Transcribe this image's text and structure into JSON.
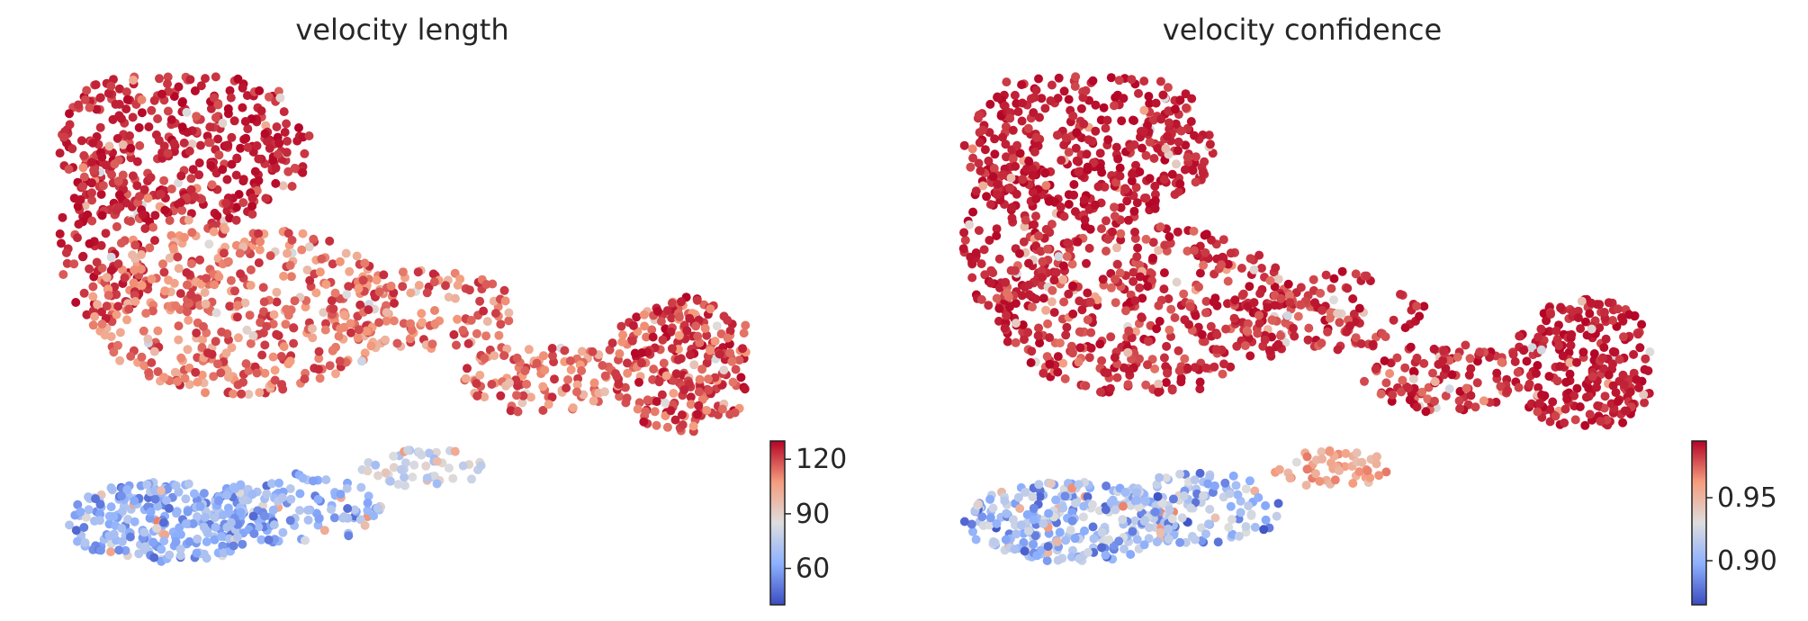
{
  "chart_data": [
    {
      "type": "scatter",
      "title": "velocity length",
      "colormap": "coolwarm",
      "colorbar": {
        "min": 40,
        "max": 130,
        "ticks": [
          60,
          90,
          120
        ],
        "tick_labels": [
          "60",
          "90",
          "120"
        ]
      },
      "axes_visible": false,
      "grid": false,
      "point_groups": [
        {
          "region": "upper-left cluster",
          "value_range": [
            115,
            130
          ]
        },
        {
          "region": "middle band",
          "value_range": [
            95,
            125
          ]
        },
        {
          "region": "right lobe",
          "value_range": [
            105,
            130
          ]
        },
        {
          "region": "bottom-left cluster",
          "value_range": [
            45,
            75
          ]
        },
        {
          "region": "diagonal bridge",
          "value_range": [
            65,
            90
          ]
        }
      ]
    },
    {
      "type": "scatter",
      "title": "velocity confidence",
      "colormap": "coolwarm",
      "colorbar": {
        "min": 0.865,
        "max": 0.995,
        "ticks": [
          0.9,
          0.95
        ],
        "tick_labels": [
          "0.90",
          "0.95"
        ]
      },
      "axes_visible": false,
      "grid": false,
      "point_groups": [
        {
          "region": "upper-left cluster",
          "value_range": [
            0.98,
            0.995
          ]
        },
        {
          "region": "middle band",
          "value_range": [
            0.97,
            0.995
          ]
        },
        {
          "region": "right lobe",
          "value_range": [
            0.98,
            0.995
          ]
        },
        {
          "region": "bottom-left cluster",
          "value_range": [
            0.865,
            0.93
          ]
        },
        {
          "region": "diagonal bridge",
          "value_range": [
            0.94,
            0.97
          ]
        }
      ]
    }
  ]
}
